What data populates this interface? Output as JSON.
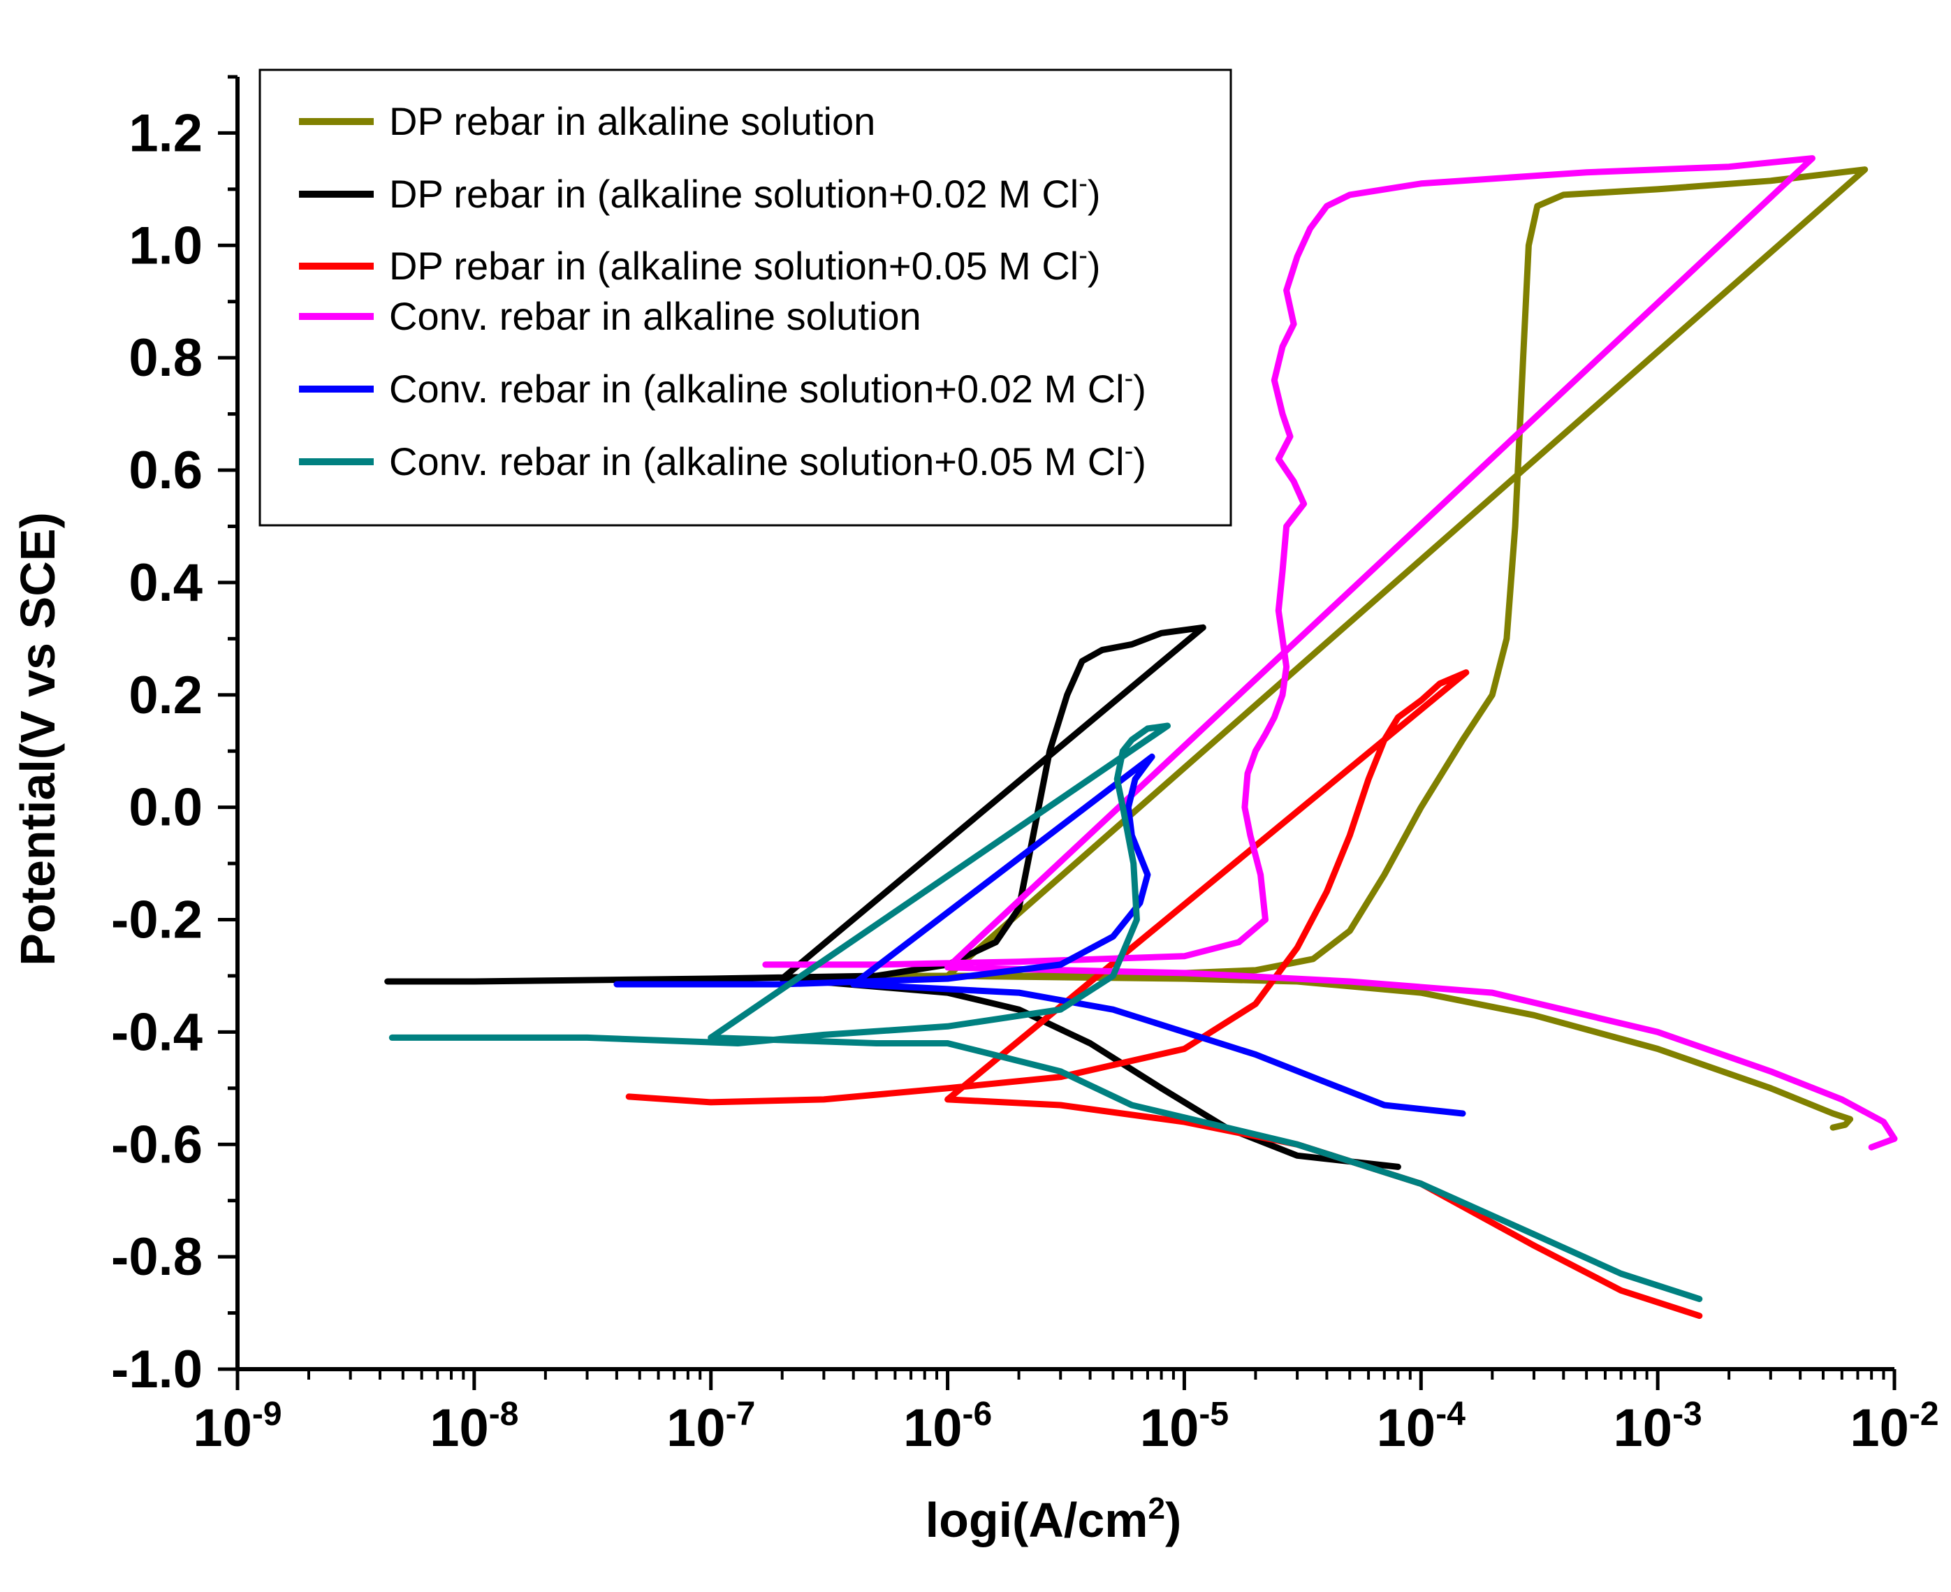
{
  "chart_data": {
    "type": "line",
    "title": "",
    "xlabel": "logi(A/cm2)",
    "xlabel_parts": {
      "main": "logi(A/cm",
      "sup": "2",
      "tail": ")"
    },
    "ylabel": "Potential(V vs SCE)",
    "xscale": "log",
    "xlim": [
      1e-09,
      0.01
    ],
    "ylim": [
      -1.0,
      1.3
    ],
    "xticks": [
      {
        "value": 1e-09,
        "base": "10",
        "exp": "-9"
      },
      {
        "value": 1e-08,
        "base": "10",
        "exp": "-8"
      },
      {
        "value": 1e-07,
        "base": "10",
        "exp": "-7"
      },
      {
        "value": 1e-06,
        "base": "10",
        "exp": "-6"
      },
      {
        "value": 1e-05,
        "base": "10",
        "exp": "-5"
      },
      {
        "value": 0.0001,
        "base": "10",
        "exp": "-4"
      },
      {
        "value": 0.001,
        "base": "10",
        "exp": "-3"
      },
      {
        "value": 0.01,
        "base": "10",
        "exp": "-2"
      }
    ],
    "yticks": [
      {
        "value": 1.2,
        "label": "1.2"
      },
      {
        "value": 1.0,
        "label": "1.0"
      },
      {
        "value": 0.8,
        "label": "0.8"
      },
      {
        "value": 0.6,
        "label": "0.6"
      },
      {
        "value": 0.4,
        "label": "0.4"
      },
      {
        "value": 0.2,
        "label": "0.2"
      },
      {
        "value": 0.0,
        "label": "0.0"
      },
      {
        "value": -0.2,
        "label": "-0.2"
      },
      {
        "value": -0.4,
        "label": "-0.4"
      },
      {
        "value": -0.6,
        "label": "-0.6"
      },
      {
        "value": -0.8,
        "label": "-0.8"
      },
      {
        "value": -1.0,
        "label": "-1.0"
      }
    ],
    "grid": false,
    "legend_position": "top-left",
    "series": [
      {
        "name": "DP rebar in alkaline solution",
        "legend": {
          "text": "DP rebar in alkaline solution",
          "sup": "",
          "tail": ""
        },
        "color": "#808000",
        "points": [
          [
            4.5e-07,
            -0.3
          ],
          [
            1e-06,
            -0.3
          ],
          [
            5e-06,
            -0.3
          ],
          [
            2e-05,
            -0.29
          ],
          [
            3.5e-05,
            -0.27
          ],
          [
            5e-05,
            -0.22
          ],
          [
            7e-05,
            -0.12
          ],
          [
            0.0001,
            0.0
          ],
          [
            0.00015,
            0.12
          ],
          [
            0.0002,
            0.2
          ],
          [
            0.00023,
            0.3
          ],
          [
            0.00025,
            0.5
          ],
          [
            0.00027,
            0.8
          ],
          [
            0.000285,
            1.0
          ],
          [
            0.00031,
            1.07
          ],
          [
            0.0004,
            1.09
          ],
          [
            0.001,
            1.1
          ],
          [
            0.003,
            1.115
          ],
          [
            0.0075,
            1.135
          ],
          [
            1e-06,
            -0.3
          ],
          [
            1e-05,
            -0.305
          ],
          [
            3e-05,
            -0.31
          ],
          [
            0.0001,
            -0.33
          ],
          [
            0.0003,
            -0.37
          ],
          [
            0.001,
            -0.43
          ],
          [
            0.003,
            -0.5
          ],
          [
            0.0055,
            -0.545
          ],
          [
            0.0065,
            -0.555
          ],
          [
            0.0062,
            -0.565
          ],
          [
            0.0055,
            -0.57
          ]
        ]
      },
      {
        "name": "DP rebar in (alkaline solution+0.02 M Cl-)",
        "legend": {
          "text": "DP  rebar in (alkaline solution+0.02 M Cl",
          "sup": "-",
          "tail": ")"
        },
        "color": "#000000",
        "points": [
          [
            4.3e-09,
            -0.31
          ],
          [
            1e-08,
            -0.31
          ],
          [
            1e-07,
            -0.305
          ],
          [
            5e-07,
            -0.3
          ],
          [
            1e-06,
            -0.28
          ],
          [
            1.6e-06,
            -0.24
          ],
          [
            2e-06,
            -0.18
          ],
          [
            2.3e-06,
            -0.05
          ],
          [
            2.7e-06,
            0.1
          ],
          [
            3.2e-06,
            0.2
          ],
          [
            3.7e-06,
            0.26
          ],
          [
            4.5e-06,
            0.28
          ],
          [
            6e-06,
            0.29
          ],
          [
            8e-06,
            0.31
          ],
          [
            1.2e-05,
            0.32
          ],
          [
            2e-07,
            -0.305
          ],
          [
            1e-06,
            -0.33
          ],
          [
            2e-06,
            -0.36
          ],
          [
            4e-06,
            -0.42
          ],
          [
            8e-06,
            -0.5
          ],
          [
            1.5e-05,
            -0.57
          ],
          [
            3e-05,
            -0.62
          ],
          [
            8e-05,
            -0.64
          ]
        ]
      },
      {
        "name": "DP rebar in (alkaline solution+0.05 M Cl-)",
        "legend": {
          "text": "DP  rebar in (alkaline solution+0.05 M Cl",
          "sup": "-",
          "tail": ")"
        },
        "color": "#ff0000",
        "points": [
          [
            4.5e-08,
            -0.515
          ],
          [
            1e-07,
            -0.525
          ],
          [
            3e-07,
            -0.52
          ],
          [
            1e-06,
            -0.5
          ],
          [
            3e-06,
            -0.48
          ],
          [
            1e-05,
            -0.43
          ],
          [
            2e-05,
            -0.35
          ],
          [
            3e-05,
            -0.25
          ],
          [
            4e-05,
            -0.15
          ],
          [
            5e-05,
            -0.05
          ],
          [
            6e-05,
            0.05
          ],
          [
            7e-05,
            0.12
          ],
          [
            8e-05,
            0.16
          ],
          [
            0.0001,
            0.19
          ],
          [
            0.00012,
            0.22
          ],
          [
            0.000155,
            0.24
          ],
          [
            1e-06,
            -0.52
          ],
          [
            3e-06,
            -0.53
          ],
          [
            1e-05,
            -0.56
          ],
          [
            3e-05,
            -0.6
          ],
          [
            0.0001,
            -0.67
          ],
          [
            0.0003,
            -0.78
          ],
          [
            0.0007,
            -0.86
          ],
          [
            0.0015,
            -0.905
          ]
        ]
      },
      {
        "name": "Conv. rebar in alkaline solution",
        "legend": {
          "text": "Conv. rebar in alkaline solution",
          "sup": "",
          "tail": ""
        },
        "color": "#ff00ff",
        "points": [
          [
            1.7e-07,
            -0.28
          ],
          [
            5e-07,
            -0.28
          ],
          [
            2e-06,
            -0.275
          ],
          [
            1e-05,
            -0.265
          ],
          [
            1.7e-05,
            -0.24
          ],
          [
            2.2e-05,
            -0.2
          ],
          [
            2.1e-05,
            -0.12
          ],
          [
            1.9e-05,
            -0.05
          ],
          [
            1.8e-05,
            0.0
          ],
          [
            1.85e-05,
            0.06
          ],
          [
            2e-05,
            0.1
          ],
          [
            2.2e-05,
            0.13
          ],
          [
            2.4e-05,
            0.16
          ],
          [
            2.6e-05,
            0.2
          ],
          [
            2.7e-05,
            0.25
          ],
          [
            2.6e-05,
            0.3
          ],
          [
            2.5e-05,
            0.35
          ],
          [
            2.6e-05,
            0.42
          ],
          [
            2.7e-05,
            0.5
          ],
          [
            3.2e-05,
            0.54
          ],
          [
            2.9e-05,
            0.58
          ],
          [
            2.5e-05,
            0.62
          ],
          [
            2.8e-05,
            0.66
          ],
          [
            2.6e-05,
            0.7
          ],
          [
            2.4e-05,
            0.76
          ],
          [
            2.6e-05,
            0.82
          ],
          [
            2.9e-05,
            0.86
          ],
          [
            2.7e-05,
            0.92
          ],
          [
            3e-05,
            0.98
          ],
          [
            3.4e-05,
            1.03
          ],
          [
            4e-05,
            1.07
          ],
          [
            5e-05,
            1.09
          ],
          [
            0.0001,
            1.11
          ],
          [
            0.0005,
            1.13
          ],
          [
            0.001,
            1.135
          ],
          [
            0.002,
            1.14
          ],
          [
            0.0045,
            1.155
          ],
          [
            1e-06,
            -0.285
          ],
          [
            1e-05,
            -0.295
          ],
          [
            5e-05,
            -0.31
          ],
          [
            0.0002,
            -0.33
          ],
          [
            0.001,
            -0.4
          ],
          [
            0.003,
            -0.47
          ],
          [
            0.006,
            -0.52
          ],
          [
            0.009,
            -0.56
          ],
          [
            0.01,
            -0.59
          ],
          [
            0.008,
            -0.605
          ]
        ]
      },
      {
        "name": "Conv. rebar in (alkaline solution+0.02 M Cl-)",
        "legend": {
          "text": "Conv. rebar in (alkaline solution+0.02 M Cl",
          "sup": "-",
          "tail": ")"
        },
        "color": "#0000ff",
        "points": [
          [
            4e-08,
            -0.315
          ],
          [
            2e-07,
            -0.315
          ],
          [
            1e-06,
            -0.305
          ],
          [
            3e-06,
            -0.28
          ],
          [
            5e-06,
            -0.23
          ],
          [
            6.5e-06,
            -0.17
          ],
          [
            7e-06,
            -0.12
          ],
          [
            6e-06,
            -0.05
          ],
          [
            5.8e-06,
            0.0
          ],
          [
            6.2e-06,
            0.05
          ],
          [
            7e-06,
            0.08
          ],
          [
            7.3e-06,
            0.09
          ],
          [
            4e-07,
            -0.315
          ],
          [
            2e-06,
            -0.33
          ],
          [
            5e-06,
            -0.36
          ],
          [
            1e-05,
            -0.4
          ],
          [
            2e-05,
            -0.44
          ],
          [
            4e-05,
            -0.49
          ],
          [
            7e-05,
            -0.53
          ],
          [
            0.00015,
            -0.545
          ]
        ]
      },
      {
        "name": "Conv. rebar in (alkaline solution+0.05 M Cl-)",
        "legend": {
          "text": "Conv. rebar in (alkaline solution+0.05 M Cl",
          "sup": "-",
          "tail": ")"
        },
        "color": "#008080",
        "points": [
          [
            4.5e-09,
            -0.41
          ],
          [
            3e-08,
            -0.41
          ],
          [
            1.3e-07,
            -0.42
          ],
          [
            3e-07,
            -0.405
          ],
          [
            1e-06,
            -0.39
          ],
          [
            3e-06,
            -0.36
          ],
          [
            5e-06,
            -0.3
          ],
          [
            6.3e-06,
            -0.2
          ],
          [
            6.1e-06,
            -0.1
          ],
          [
            5.5e-06,
            0.0
          ],
          [
            5.2e-06,
            0.05
          ],
          [
            5.5e-06,
            0.1
          ],
          [
            6e-06,
            0.12
          ],
          [
            7e-06,
            0.14
          ],
          [
            8.5e-06,
            0.145
          ],
          [
            1e-07,
            -0.41
          ],
          [
            5e-07,
            -0.42
          ],
          [
            1e-06,
            -0.42
          ],
          [
            3e-06,
            -0.47
          ],
          [
            6e-06,
            -0.53
          ],
          [
            1.2e-05,
            -0.56
          ],
          [
            3e-05,
            -0.6
          ],
          [
            0.0001,
            -0.67
          ],
          [
            0.0003,
            -0.76
          ],
          [
            0.0007,
            -0.83
          ],
          [
            0.0015,
            -0.875
          ]
        ]
      }
    ]
  }
}
